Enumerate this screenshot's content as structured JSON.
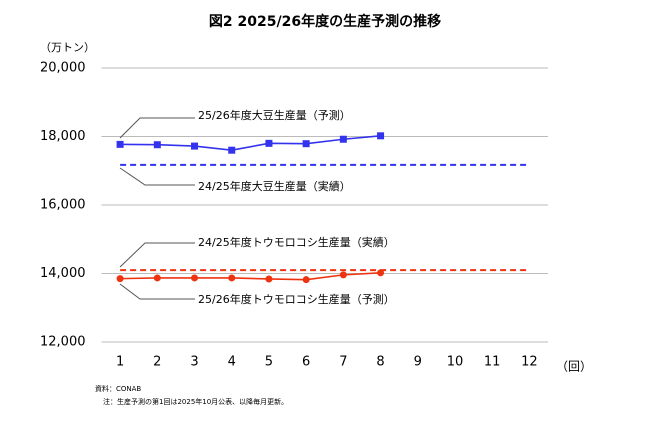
{
  "chart_data": {
    "type": "line",
    "title": "図2 2025/26年度の生産予測の推移",
    "y_label": "（万トン）",
    "x_label": "（回）",
    "categories": [
      "1",
      "2",
      "3",
      "4",
      "5",
      "6",
      "7",
      "8",
      "9",
      "10",
      "11",
      "12"
    ],
    "series": [
      {
        "name": "25/26年度大豆生産量（予測）",
        "color": "#3333ee",
        "marker": "square",
        "dashed": false,
        "values": [
          17770,
          17760,
          17720,
          17600,
          17800,
          17790,
          17920,
          18020,
          null,
          null,
          null,
          null
        ]
      },
      {
        "name": "24/25年度大豆生産量（実績）",
        "color": "#3333ee",
        "marker": "none",
        "dashed": true,
        "values": [
          17170,
          17170,
          17170,
          17170,
          17170,
          17170,
          17170,
          17170,
          17170,
          17170,
          17170,
          17170
        ]
      },
      {
        "name": "24/25年度トウモロコシ生産量（実績）",
        "color": "#ee3311",
        "marker": "none",
        "dashed": true,
        "values": [
          14100,
          14100,
          14100,
          14100,
          14100,
          14100,
          14100,
          14100,
          14100,
          14100,
          14100,
          14100
        ]
      },
      {
        "name": "25/26年度トウモロコシ生産量（予測）",
        "color": "#ee3311",
        "marker": "circle",
        "dashed": false,
        "values": [
          13850,
          13870,
          13870,
          13870,
          13840,
          13820,
          13960,
          14020,
          null,
          null,
          null,
          null
        ]
      }
    ],
    "ylim": [
      12000,
      20000
    ],
    "yticks": [
      {
        "value": 12000,
        "label": "12,000"
      },
      {
        "value": 14000,
        "label": "14,000"
      },
      {
        "value": 16000,
        "label": "16,000"
      },
      {
        "value": 18000,
        "label": "18,000"
      },
      {
        "value": 20000,
        "label": "20,000"
      }
    ],
    "grid": true,
    "notes": [
      "資料：CONAB",
      "注：生産予測の第1回は2025年10月公表、以降毎月更新。"
    ]
  }
}
